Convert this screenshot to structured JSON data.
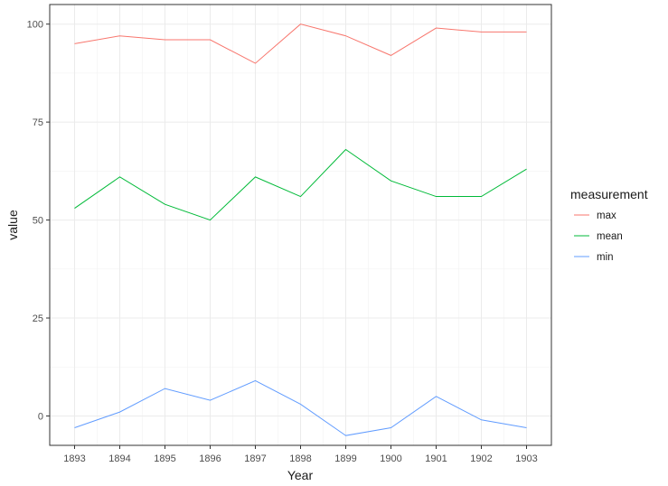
{
  "chart_data": {
    "type": "line",
    "xlabel": "Year",
    "ylabel": "value",
    "x": [
      "1893",
      "1894",
      "1895",
      "1896",
      "1897",
      "1898",
      "1899",
      "1900",
      "1901",
      "1902",
      "1903"
    ],
    "ylim": [
      -7.5,
      105
    ],
    "yticks": [
      0,
      25,
      50,
      75,
      100
    ],
    "grid": true,
    "legend": {
      "title": "measurement",
      "position": "right"
    },
    "series": [
      {
        "name": "max",
        "color": "#F8766D",
        "values": [
          95,
          97,
          96,
          96,
          90,
          100,
          97,
          92,
          99,
          98,
          98
        ]
      },
      {
        "name": "mean",
        "color": "#00BA38",
        "values": [
          53,
          61,
          54,
          50,
          61,
          56,
          68,
          60,
          56,
          56,
          63
        ]
      },
      {
        "name": "min",
        "color": "#619CFF",
        "values": [
          -3,
          1,
          7,
          4,
          9,
          3,
          -5,
          -3,
          5,
          -1,
          -3
        ]
      }
    ]
  }
}
